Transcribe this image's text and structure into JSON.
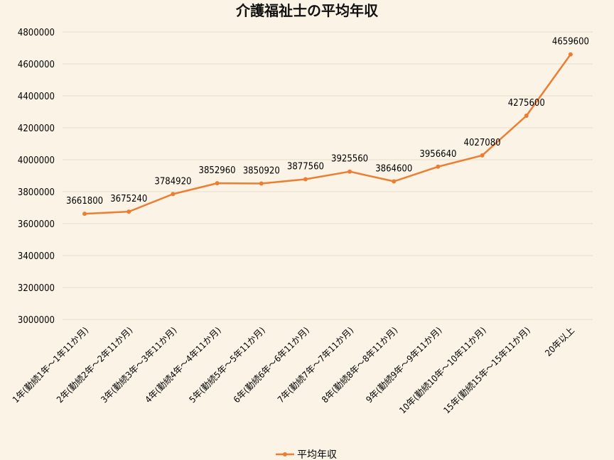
{
  "chart_data": {
    "type": "line",
    "title": "介護福祉士の平均年収",
    "xlabel": "",
    "ylabel": "",
    "ylim": [
      3000000,
      4800000
    ],
    "ytick_step": 200000,
    "yticks": [
      "3000000",
      "3200000",
      "3400000",
      "3600000",
      "3800000",
      "4000000",
      "4200000",
      "4400000",
      "4600000",
      "4800000"
    ],
    "grid": true,
    "legend_position": "bottom",
    "categories": [
      "1年(勤続1年～1年11か月)",
      "2年(勤続2年～2年11か月)",
      "3年(勤続3年～3年11か月)",
      "4年(勤続4年～4年11か月)",
      "5年(勤続5年～5年11か月)",
      "6年(勤続6年～6年11か月)",
      "7年(勤続7年～7年11か月)",
      "8年(勤続8年～8年11か月)",
      "9年(勤続9年～9年11か月)",
      "10年(勤続10年～10年11か月)",
      "15年(勤続15年～15年11か月)",
      "20年以上"
    ],
    "series": [
      {
        "name": "平均年収",
        "color": "#ed7d31",
        "values": [
          3661800,
          3675240,
          3784920,
          3852960,
          3850920,
          3877560,
          3925560,
          3864600,
          3956640,
          4027080,
          4275600,
          4659600
        ]
      }
    ]
  }
}
